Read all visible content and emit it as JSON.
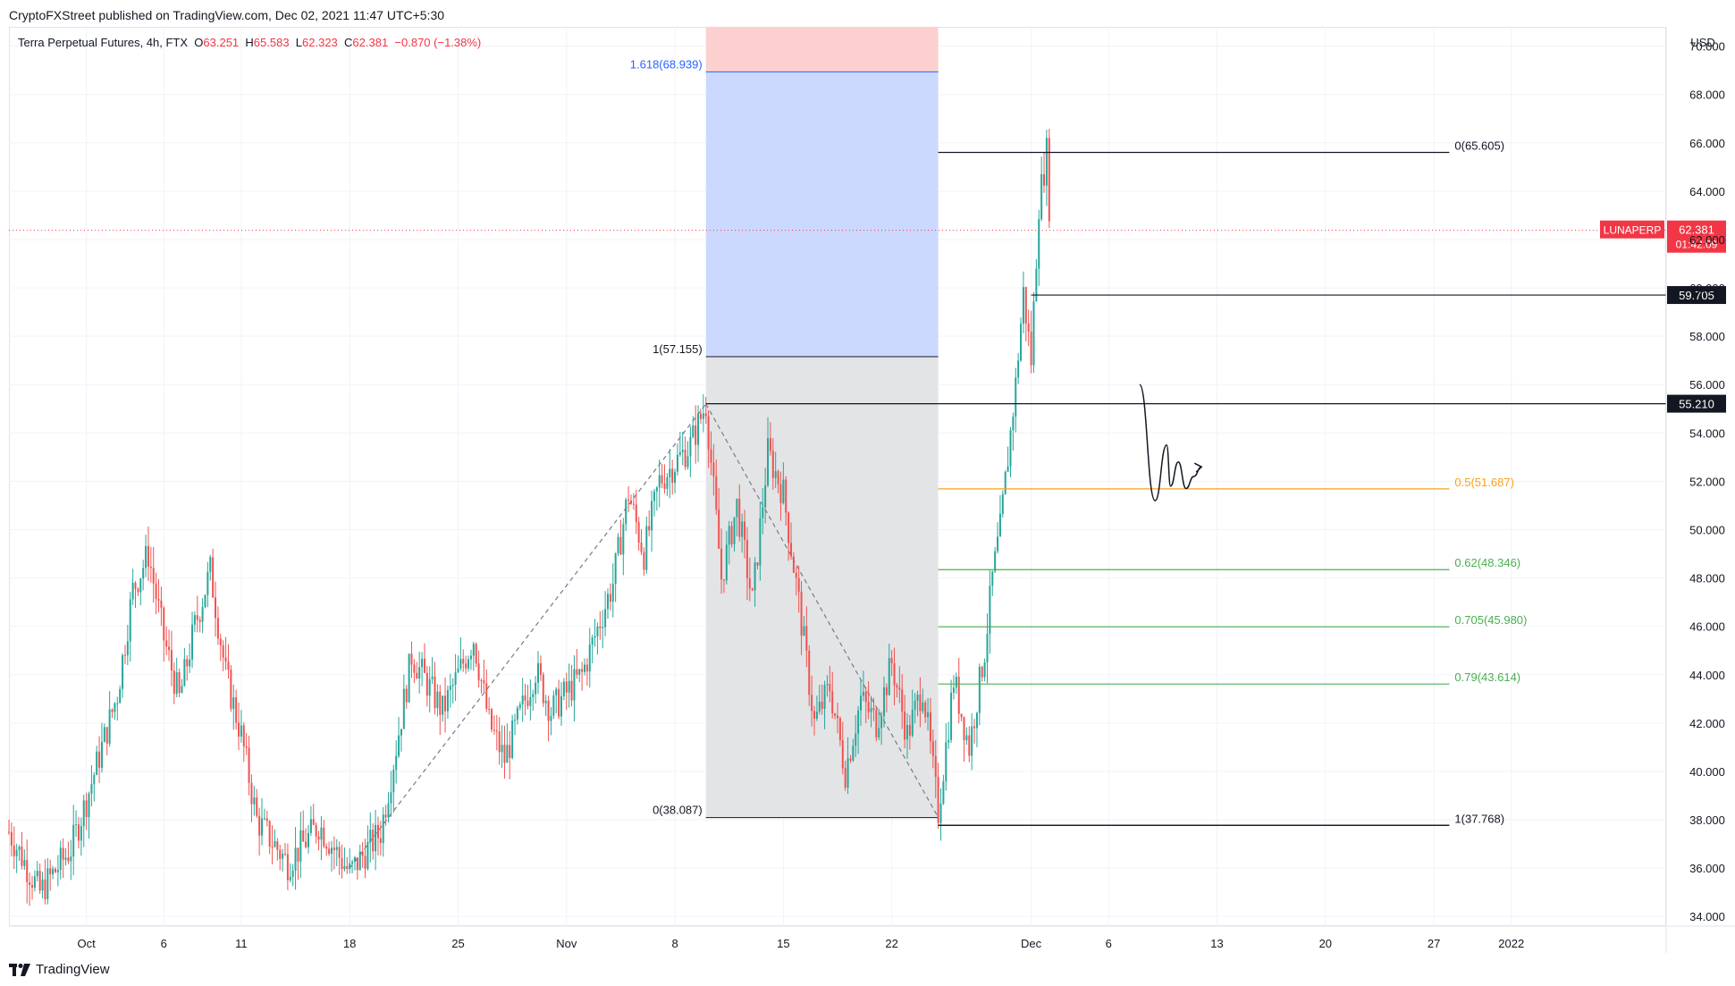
{
  "publisher_line": "CryptoFXStreet published on TradingView.com, Dec 02, 2021 11:47 UTC+5:30",
  "legend": {
    "title": "Terra Perpetual Futures, 4h, FTX",
    "o_label": "O",
    "o_value": "63.251",
    "h_label": "H",
    "h_value": "65.583",
    "l_label": "L",
    "l_value": "62.323",
    "c_label": "C",
    "c_value": "62.381",
    "change": "−0.870 (−1.38%)"
  },
  "currency": "USD",
  "footer_brand": "TradingView",
  "colors": {
    "up": "#26a69a",
    "down": "#ef5350",
    "price_line": "#f23645",
    "fib_orange": "#f7a21b",
    "fib_green": "#4caf50",
    "ext_label": "#2962ff",
    "target_zone": "#ccd9ff",
    "stop_zone": "#fdd0d0",
    "base_zone": "#e3e4e6"
  },
  "chart_data": {
    "type": "candlestick",
    "symbol": "LUNAPERP",
    "interval": "4h",
    "y_axis": {
      "min": 33.6,
      "max": 70.8,
      "ticks": [
        "34.000",
        "36.000",
        "38.000",
        "40.000",
        "42.000",
        "44.000",
        "46.000",
        "48.000",
        "50.000",
        "52.000",
        "54.000",
        "56.000",
        "58.000",
        "60.000",
        "62.000",
        "64.000",
        "66.000",
        "68.000",
        "70.000"
      ]
    },
    "x_axis": {
      "ticks": [
        {
          "label": "Oct",
          "date": "2021-10-01"
        },
        {
          "label": "6",
          "date": "2021-10-06"
        },
        {
          "label": "11",
          "date": "2021-10-11"
        },
        {
          "label": "18",
          "date": "2021-10-18"
        },
        {
          "label": "25",
          "date": "2021-10-25"
        },
        {
          "label": "Nov",
          "date": "2021-11-01"
        },
        {
          "label": "8",
          "date": "2021-11-08"
        },
        {
          "label": "15",
          "date": "2021-11-15"
        },
        {
          "label": "22",
          "date": "2021-11-22"
        },
        {
          "label": "Dec",
          "date": "2021-12-01"
        },
        {
          "label": "6",
          "date": "2021-12-06"
        },
        {
          "label": "13",
          "date": "2021-12-13"
        },
        {
          "label": "20",
          "date": "2021-12-20"
        },
        {
          "label": "27",
          "date": "2021-12-27"
        },
        {
          "label": "2022",
          "date": "2022-01-01"
        }
      ]
    },
    "price_path": [
      [
        "2021-09-26",
        37.5
      ],
      [
        "2021-09-28",
        35.0
      ],
      [
        "2021-09-30",
        36.8
      ],
      [
        "2021-10-01",
        38.8
      ],
      [
        "2021-10-03",
        43.2
      ],
      [
        "2021-10-04",
        47.5
      ],
      [
        "2021-10-05",
        49.0
      ],
      [
        "2021-10-06",
        45.5
      ],
      [
        "2021-10-07",
        43.0
      ],
      [
        "2021-10-08",
        46.0
      ],
      [
        "2021-10-09",
        48.3
      ],
      [
        "2021-10-10",
        44.0
      ],
      [
        "2021-10-11",
        41.5
      ],
      [
        "2021-10-12",
        38.0
      ],
      [
        "2021-10-14",
        36.2
      ],
      [
        "2021-10-16",
        37.8
      ],
      [
        "2021-10-18",
        35.8
      ],
      [
        "2021-10-20",
        37.5
      ],
      [
        "2021-10-21",
        41.0
      ],
      [
        "2021-10-22",
        44.8
      ],
      [
        "2021-10-24",
        42.5
      ],
      [
        "2021-10-26",
        45.5
      ],
      [
        "2021-10-27",
        42.0
      ],
      [
        "2021-10-28",
        40.5
      ],
      [
        "2021-10-30",
        44.2
      ],
      [
        "2021-10-31",
        42.5
      ],
      [
        "2021-11-02",
        44.0
      ],
      [
        "2021-11-04",
        47.8
      ],
      [
        "2021-11-05",
        51.5
      ],
      [
        "2021-11-06",
        49.0
      ],
      [
        "2021-11-07",
        52.0
      ],
      [
        "2021-11-09",
        53.5
      ],
      [
        "2021-11-10",
        55.2
      ],
      [
        "2021-11-11",
        48.0
      ],
      [
        "2021-11-12",
        51.0
      ],
      [
        "2021-11-13",
        47.0
      ],
      [
        "2021-11-14",
        53.2
      ],
      [
        "2021-11-15",
        51.5
      ],
      [
        "2021-11-16",
        47.0
      ],
      [
        "2021-11-17",
        42.0
      ],
      [
        "2021-11-18",
        43.5
      ],
      [
        "2021-11-19",
        40.0
      ],
      [
        "2021-11-20",
        43.0
      ],
      [
        "2021-11-21",
        42.0
      ],
      [
        "2021-11-22",
        44.5
      ],
      [
        "2021-11-23",
        41.5
      ],
      [
        "2021-11-24",
        43.5
      ],
      [
        "2021-11-25",
        38.3
      ],
      [
        "2021-11-26",
        43.8
      ],
      [
        "2021-11-27",
        41.0
      ],
      [
        "2021-11-28",
        45.0
      ],
      [
        "2021-11-28T12:00",
        48.0
      ],
      [
        "2021-11-29",
        50.0
      ],
      [
        "2021-11-29T12:00",
        53.0
      ],
      [
        "2021-11-30",
        56.0
      ],
      [
        "2021-11-30T12:00",
        59.8
      ],
      [
        "2021-12-01",
        57.0
      ],
      [
        "2021-12-01T12:00",
        63.5
      ],
      [
        "2021-12-02",
        65.6
      ],
      [
        "2021-12-02T06:00",
        62.381
      ]
    ],
    "last_price": {
      "symbol": "LUNAPERP",
      "value": "62.381",
      "countdown": "01:42:09"
    },
    "horizontal_levels": [
      {
        "value": 59.705,
        "label": "59.705",
        "from": "2021-12-01"
      },
      {
        "value": 55.21,
        "label": "55.210",
        "from": "2021-11-10"
      },
      {
        "value": 37.768,
        "from": "2021-11-25"
      }
    ],
    "fib_retracement": {
      "from_date": "2021-11-25",
      "to_date": "2021-12-28",
      "levels": [
        {
          "value": 65.605,
          "label": "0(65.605)",
          "color": "#131722"
        },
        {
          "value": 51.687,
          "label": "0.5(51.687)",
          "color": "#f7a21b"
        },
        {
          "value": 48.346,
          "label": "0.62(48.346)",
          "color": "#4caf50"
        },
        {
          "value": 45.98,
          "label": "0.705(45.980)",
          "color": "#4caf50"
        },
        {
          "value": 43.614,
          "label": "0.79(43.614)",
          "color": "#4caf50"
        },
        {
          "value": 37.768,
          "label": "1(37.768)",
          "color": "#131722"
        }
      ]
    },
    "fib_extension": {
      "from_date": "2021-11-10",
      "to_date": "2021-11-25",
      "levels": [
        {
          "value": 68.939,
          "label": "1.618(68.939)"
        },
        {
          "value": 57.155,
          "label": "1(57.155)"
        },
        {
          "value": 38.087,
          "label": "0(38.087)"
        }
      ],
      "stop_zone_top": 71.5
    },
    "swing_lines": [
      [
        [
          "2021-10-18",
          36.0
        ],
        [
          "2021-11-10",
          55.2
        ]
      ],
      [
        [
          "2021-11-10",
          55.2
        ],
        [
          "2021-11-25",
          38.1
        ]
      ]
    ],
    "projection_path": [
      [
        "2021-12-08",
        56.0
      ],
      [
        "2021-12-09",
        51.2
      ],
      [
        "2021-12-09T18:00",
        53.5
      ],
      [
        "2021-12-10",
        51.8
      ],
      [
        "2021-12-10T12:00",
        52.8
      ],
      [
        "2021-12-11",
        51.7
      ],
      [
        "2021-12-11T12:00",
        52.2
      ],
      [
        "2021-12-12",
        52.6
      ]
    ]
  }
}
